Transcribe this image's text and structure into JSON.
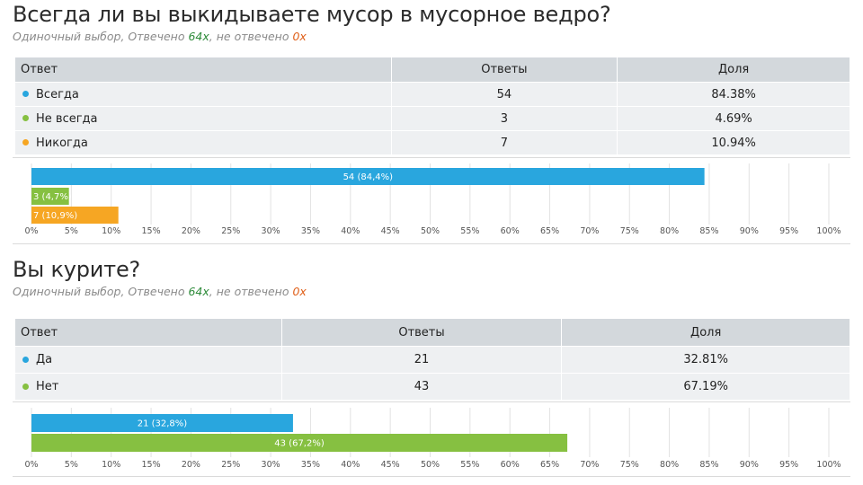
{
  "colors": {
    "blue": "#29a6de",
    "green": "#86c041",
    "orange": "#f6a623",
    "answered": "#2e8b3a",
    "unanswered": "#e0601a"
  },
  "surveys": [
    {
      "question": "Всегда ли вы выкидываете мусор в мусорное ведро?",
      "meta": {
        "prefix": "Одиночный выбор, Отвечено ",
        "answered": "64x",
        "middle": ", не отвечено ",
        "unanswered": "0x"
      },
      "table": {
        "headers": [
          "Ответ",
          "Ответы",
          "Доля"
        ],
        "rows": [
          {
            "label": "Всегда",
            "count": "54",
            "share": "84.38%",
            "color": "#29a6de"
          },
          {
            "label": "Не всегда",
            "count": "3",
            "share": "4.69%",
            "color": "#86c041"
          },
          {
            "label": "Никогда",
            "count": "7",
            "share": "10.94%",
            "color": "#f6a623"
          }
        ]
      }
    },
    {
      "question": "Вы курите?",
      "meta": {
        "prefix": "Одиночный выбор, Отвечено ",
        "answered": "64x",
        "middle": ", не отвечено ",
        "unanswered": "0x"
      },
      "table": {
        "headers": [
          "Ответ",
          "Ответы",
          "Доля"
        ],
        "rows": [
          {
            "label": "Да",
            "count": "21",
            "share": "32.81%",
            "color": "#29a6de"
          },
          {
            "label": "Нет",
            "count": "43",
            "share": "67.19%",
            "color": "#86c041"
          }
        ]
      }
    }
  ],
  "chart_data": [
    {
      "type": "bar",
      "orientation": "horizontal",
      "categories": [
        "Всегда",
        "Не всегда",
        "Никогда"
      ],
      "values": [
        84.4,
        4.7,
        10.9
      ],
      "bar_labels": [
        "54 (84,4%)",
        "3 (4,7%)",
        "7 (10,9%)"
      ],
      "colors": [
        "#29a6de",
        "#86c041",
        "#f6a623"
      ],
      "xlim": [
        0,
        100
      ],
      "xticks": [
        "0%",
        "5%",
        "10%",
        "15%",
        "20%",
        "25%",
        "30%",
        "35%",
        "40%",
        "45%",
        "50%",
        "55%",
        "60%",
        "65%",
        "70%",
        "75%",
        "80%",
        "85%",
        "90%",
        "95%",
        "100%"
      ],
      "grid": true
    },
    {
      "type": "bar",
      "orientation": "horizontal",
      "categories": [
        "Да",
        "Нет"
      ],
      "values": [
        32.8,
        67.2
      ],
      "bar_labels": [
        "21 (32,8%)",
        "43 (67,2%)"
      ],
      "colors": [
        "#29a6de",
        "#86c041"
      ],
      "xlim": [
        0,
        100
      ],
      "xticks": [
        "0%",
        "5%",
        "10%",
        "15%",
        "20%",
        "25%",
        "30%",
        "35%",
        "40%",
        "45%",
        "50%",
        "55%",
        "60%",
        "65%",
        "70%",
        "75%",
        "80%",
        "85%",
        "90%",
        "95%",
        "100%"
      ],
      "grid": true
    }
  ]
}
